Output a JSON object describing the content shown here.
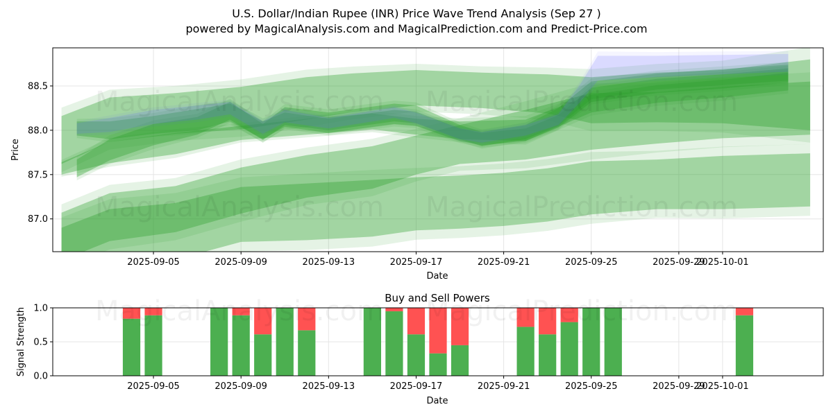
{
  "header": {
    "title": "U.S. Dollar/Indian Rupee (INR) Price Wave Trend Analysis (Sep 27 )",
    "subtitle": "powered by MagicalAnalysis.com and MagicalPrediction.com and Predict-Price.com"
  },
  "watermark": {
    "left": "MagicalAnalysis.com",
    "right": "MagicalPrediction.com"
  },
  "colors": {
    "green_band": "#2ca02c",
    "blue_band": "#6464ff",
    "buy": "#4caf50",
    "sell": "#ff5252",
    "grid": "#e5e5e5"
  },
  "chart_data": [
    {
      "type": "area",
      "title": "",
      "xlabel": "Date",
      "ylabel": "Price",
      "ylim": [
        86.63,
        88.93
      ],
      "xlim_days": [
        -2.6,
        32.6
      ],
      "x_origin": "2025-09-03",
      "x_ticks": [
        {
          "day": 2,
          "label": "2025-09-05"
        },
        {
          "day": 6,
          "label": "2025-09-09"
        },
        {
          "day": 10,
          "label": "2025-09-13"
        },
        {
          "day": 14,
          "label": "2025-09-17"
        },
        {
          "day": 18,
          "label": "2025-09-21"
        },
        {
          "day": 22,
          "label": "2025-09-25"
        },
        {
          "day": 26,
          "label": "2025-09-29"
        },
        {
          "day": 28,
          "label": "2025-10-01"
        }
      ],
      "y_ticks": [
        {
          "value": 87.0,
          "label": "87.0"
        },
        {
          "value": 87.5,
          "label": "87.5"
        },
        {
          "value": 88.0,
          "label": "88.0"
        },
        {
          "value": 88.5,
          "label": "88.5"
        }
      ],
      "series": [
        {
          "name": "wide-upper-band",
          "color": "green",
          "points": [
            [
              -2.2,
              87.89,
              0.27
            ],
            [
              0.0,
              88.12,
              0.25
            ],
            [
              3.0,
              88.19,
              0.23
            ],
            [
              6.0,
              88.25,
              0.24
            ],
            [
              9.0,
              88.36,
              0.24
            ],
            [
              11.0,
              88.42,
              0.22
            ],
            [
              14.0,
              88.48,
              0.2
            ],
            [
              17.0,
              88.45,
              0.2
            ],
            [
              20.0,
              88.41,
              0.22
            ],
            [
              22.0,
              88.34,
              0.26
            ],
            [
              25.0,
              88.37,
              0.28
            ],
            [
              28.0,
              88.38,
              0.3
            ],
            [
              32.0,
              88.4,
              0.4
            ]
          ]
        },
        {
          "name": "wide-middle-band",
          "color": "green",
          "points": [
            [
              -2.2,
              86.8,
              0.27
            ],
            [
              0.0,
              87.02,
              0.27
            ],
            [
              3.0,
              87.11,
              0.26
            ],
            [
              6.0,
              87.32,
              0.26
            ],
            [
              9.0,
              87.48,
              0.24
            ],
            [
              12.0,
              87.58,
              0.24
            ],
            [
              14.0,
              87.72,
              0.22
            ],
            [
              16.0,
              87.84,
              0.22
            ],
            [
              19.0,
              87.95,
              0.28
            ],
            [
              22.0,
              88.1,
              0.32
            ],
            [
              25.0,
              88.14,
              0.29
            ],
            [
              28.0,
              88.2,
              0.29
            ],
            [
              32.0,
              88.25,
              0.3
            ]
          ]
        },
        {
          "name": "wide-lower-band",
          "color": "green",
          "points": [
            [
              -2.2,
              86.57,
              0.33
            ],
            [
              0.0,
              86.79,
              0.32
            ],
            [
              3.0,
              86.86,
              0.32
            ],
            [
              6.0,
              87.05,
              0.31
            ],
            [
              9.0,
              87.08,
              0.32
            ],
            [
              12.0,
              87.12,
              0.32
            ],
            [
              14.0,
              87.17,
              0.3
            ],
            [
              16.0,
              87.19,
              0.3
            ],
            [
              18.0,
              87.22,
              0.3
            ],
            [
              20.0,
              87.27,
              0.3
            ],
            [
              22.0,
              87.35,
              0.3
            ],
            [
              25.0,
              87.39,
              0.28
            ],
            [
              28.0,
              87.41,
              0.3
            ],
            [
              32.0,
              87.44,
              0.3
            ]
          ]
        },
        {
          "name": "mid-rising-band",
          "color": "green",
          "points": [
            [
              -2.2,
              87.57,
              0.07
            ],
            [
              0.0,
              87.75,
              0.12
            ],
            [
              3.0,
              87.85,
              0.12
            ],
            [
              6.0,
              87.97,
              0.08
            ],
            [
              9.0,
              88.04,
              0.09
            ],
            [
              12.0,
              88.1,
              0.09
            ],
            [
              14.0,
              88.04,
              0.09
            ],
            [
              16.0,
              88.0,
              0.1
            ],
            [
              19.0,
              88.0,
              0.12
            ],
            [
              22.0,
              88.3,
              0.1
            ],
            [
              25.0,
              88.41,
              0.1
            ],
            [
              28.0,
              88.47,
              0.1
            ],
            [
              31.0,
              88.55,
              0.1
            ]
          ]
        },
        {
          "name": "wave-main",
          "color": "green",
          "points": [
            [
              -1.5,
              88.02,
              0.08
            ],
            [
              0.0,
              88.0,
              0.1
            ],
            [
              2.0,
              88.06,
              0.1
            ],
            [
              4.0,
              88.12,
              0.12
            ],
            [
              5.5,
              88.2,
              0.1
            ],
            [
              7.0,
              88.0,
              0.1
            ],
            [
              8.0,
              88.12,
              0.08
            ],
            [
              10.0,
              88.05,
              0.08
            ],
            [
              13.0,
              88.15,
              0.08
            ],
            [
              14.0,
              88.13,
              0.08
            ],
            [
              16.0,
              87.95,
              0.07
            ],
            [
              17.0,
              87.9,
              0.07
            ],
            [
              19.0,
              87.95,
              0.07
            ],
            [
              20.5,
              88.1,
              0.07
            ],
            [
              22.0,
              88.4,
              0.08
            ],
            [
              25.0,
              88.5,
              0.08
            ],
            [
              28.0,
              88.55,
              0.08
            ],
            [
              31.0,
              88.62,
              0.08
            ]
          ]
        },
        {
          "name": "wave-alt",
          "color": "green",
          "points": [
            [
              -1.5,
              87.57,
              0.1
            ],
            [
              0.0,
              87.78,
              0.12
            ],
            [
              2.0,
              87.95,
              0.12
            ],
            [
              4.0,
              88.05,
              0.1
            ],
            [
              5.5,
              88.22,
              0.1
            ],
            [
              7.0,
              87.98,
              0.09
            ],
            [
              8.0,
              88.16,
              0.1
            ],
            [
              10.0,
              88.1,
              0.1
            ],
            [
              13.0,
              88.2,
              0.1
            ],
            [
              14.0,
              88.18,
              0.1
            ],
            [
              16.0,
              87.98,
              0.08
            ],
            [
              17.0,
              87.9,
              0.08
            ],
            [
              19.0,
              87.98,
              0.08
            ],
            [
              20.5,
              88.15,
              0.1
            ],
            [
              22.0,
              88.45,
              0.1
            ],
            [
              25.0,
              88.55,
              0.09
            ],
            [
              28.0,
              88.6,
              0.09
            ],
            [
              31.0,
              88.65,
              0.09
            ]
          ]
        },
        {
          "name": "wave-projection-blue",
          "color": "blue",
          "points": [
            [
              -1.5,
              88.02,
              0.06
            ],
            [
              0.0,
              88.06,
              0.08
            ],
            [
              2.0,
              88.15,
              0.08
            ],
            [
              4.0,
              88.2,
              0.08
            ],
            [
              5.5,
              88.25,
              0.07
            ],
            [
              7.0,
              88.03,
              0.07
            ],
            [
              8.0,
              88.16,
              0.07
            ],
            [
              10.0,
              88.08,
              0.06
            ],
            [
              13.0,
              88.2,
              0.06
            ],
            [
              14.0,
              88.14,
              0.06
            ],
            [
              16.0,
              87.96,
              0.06
            ],
            [
              17.0,
              87.92,
              0.06
            ],
            [
              19.0,
              88.0,
              0.06
            ],
            [
              20.5,
              88.12,
              0.06
            ],
            [
              21.5,
              88.42,
              0.1
            ],
            [
              22.3,
              88.7,
              0.14
            ],
            [
              25.0,
              88.72,
              0.12
            ],
            [
              28.0,
              88.74,
              0.11
            ],
            [
              31.0,
              88.76,
              0.1
            ]
          ]
        }
      ]
    },
    {
      "type": "bar",
      "title": "Buy and Sell Powers",
      "xlabel": "Date",
      "ylabel": "Signal Strength",
      "ylim": [
        0,
        1
      ],
      "xlim_days": [
        -2.6,
        32.6
      ],
      "x_origin": "2025-09-03",
      "x_ticks": [
        {
          "day": 2,
          "label": "2025-09-05"
        },
        {
          "day": 6,
          "label": "2025-09-09"
        },
        {
          "day": 10,
          "label": "2025-09-13"
        },
        {
          "day": 14,
          "label": "2025-09-17"
        },
        {
          "day": 18,
          "label": "2025-09-21"
        },
        {
          "day": 22,
          "label": "2025-09-25"
        },
        {
          "day": 26,
          "label": "2025-09-29"
        },
        {
          "day": 28,
          "label": "2025-10-01"
        }
      ],
      "y_ticks": [
        {
          "value": 0.0,
          "label": "0.0"
        },
        {
          "value": 0.5,
          "label": "0.5"
        },
        {
          "value": 1.0,
          "label": "1.0"
        }
      ],
      "categories": [
        "2025-09-04",
        "2025-09-05",
        "2025-09-08",
        "2025-09-09",
        "2025-09-10",
        "2025-09-11",
        "2025-09-12",
        "2025-09-15",
        "2025-09-16",
        "2025-09-17",
        "2025-09-18",
        "2025-09-19",
        "2025-09-22",
        "2025-09-23",
        "2025-09-24",
        "2025-09-25",
        "2025-09-26",
        "2025-10-02"
      ],
      "days": [
        1,
        2,
        5,
        6,
        7,
        8,
        9,
        12,
        13,
        14,
        15,
        16,
        19,
        20,
        21,
        22,
        23,
        29
      ],
      "series": [
        {
          "name": "Buy",
          "color": "green",
          "values": [
            0.84,
            0.89,
            1.0,
            0.89,
            0.61,
            1.0,
            0.67,
            1.0,
            0.95,
            0.61,
            0.33,
            0.45,
            0.72,
            0.61,
            0.79,
            1.0,
            1.0,
            0.89
          ]
        },
        {
          "name": "Sell",
          "color": "red",
          "values": [
            0.16,
            0.11,
            0.0,
            0.11,
            0.39,
            0.0,
            0.33,
            0.0,
            0.05,
            0.39,
            0.67,
            0.55,
            0.28,
            0.39,
            0.21,
            0.0,
            0.0,
            0.11
          ]
        }
      ]
    }
  ]
}
